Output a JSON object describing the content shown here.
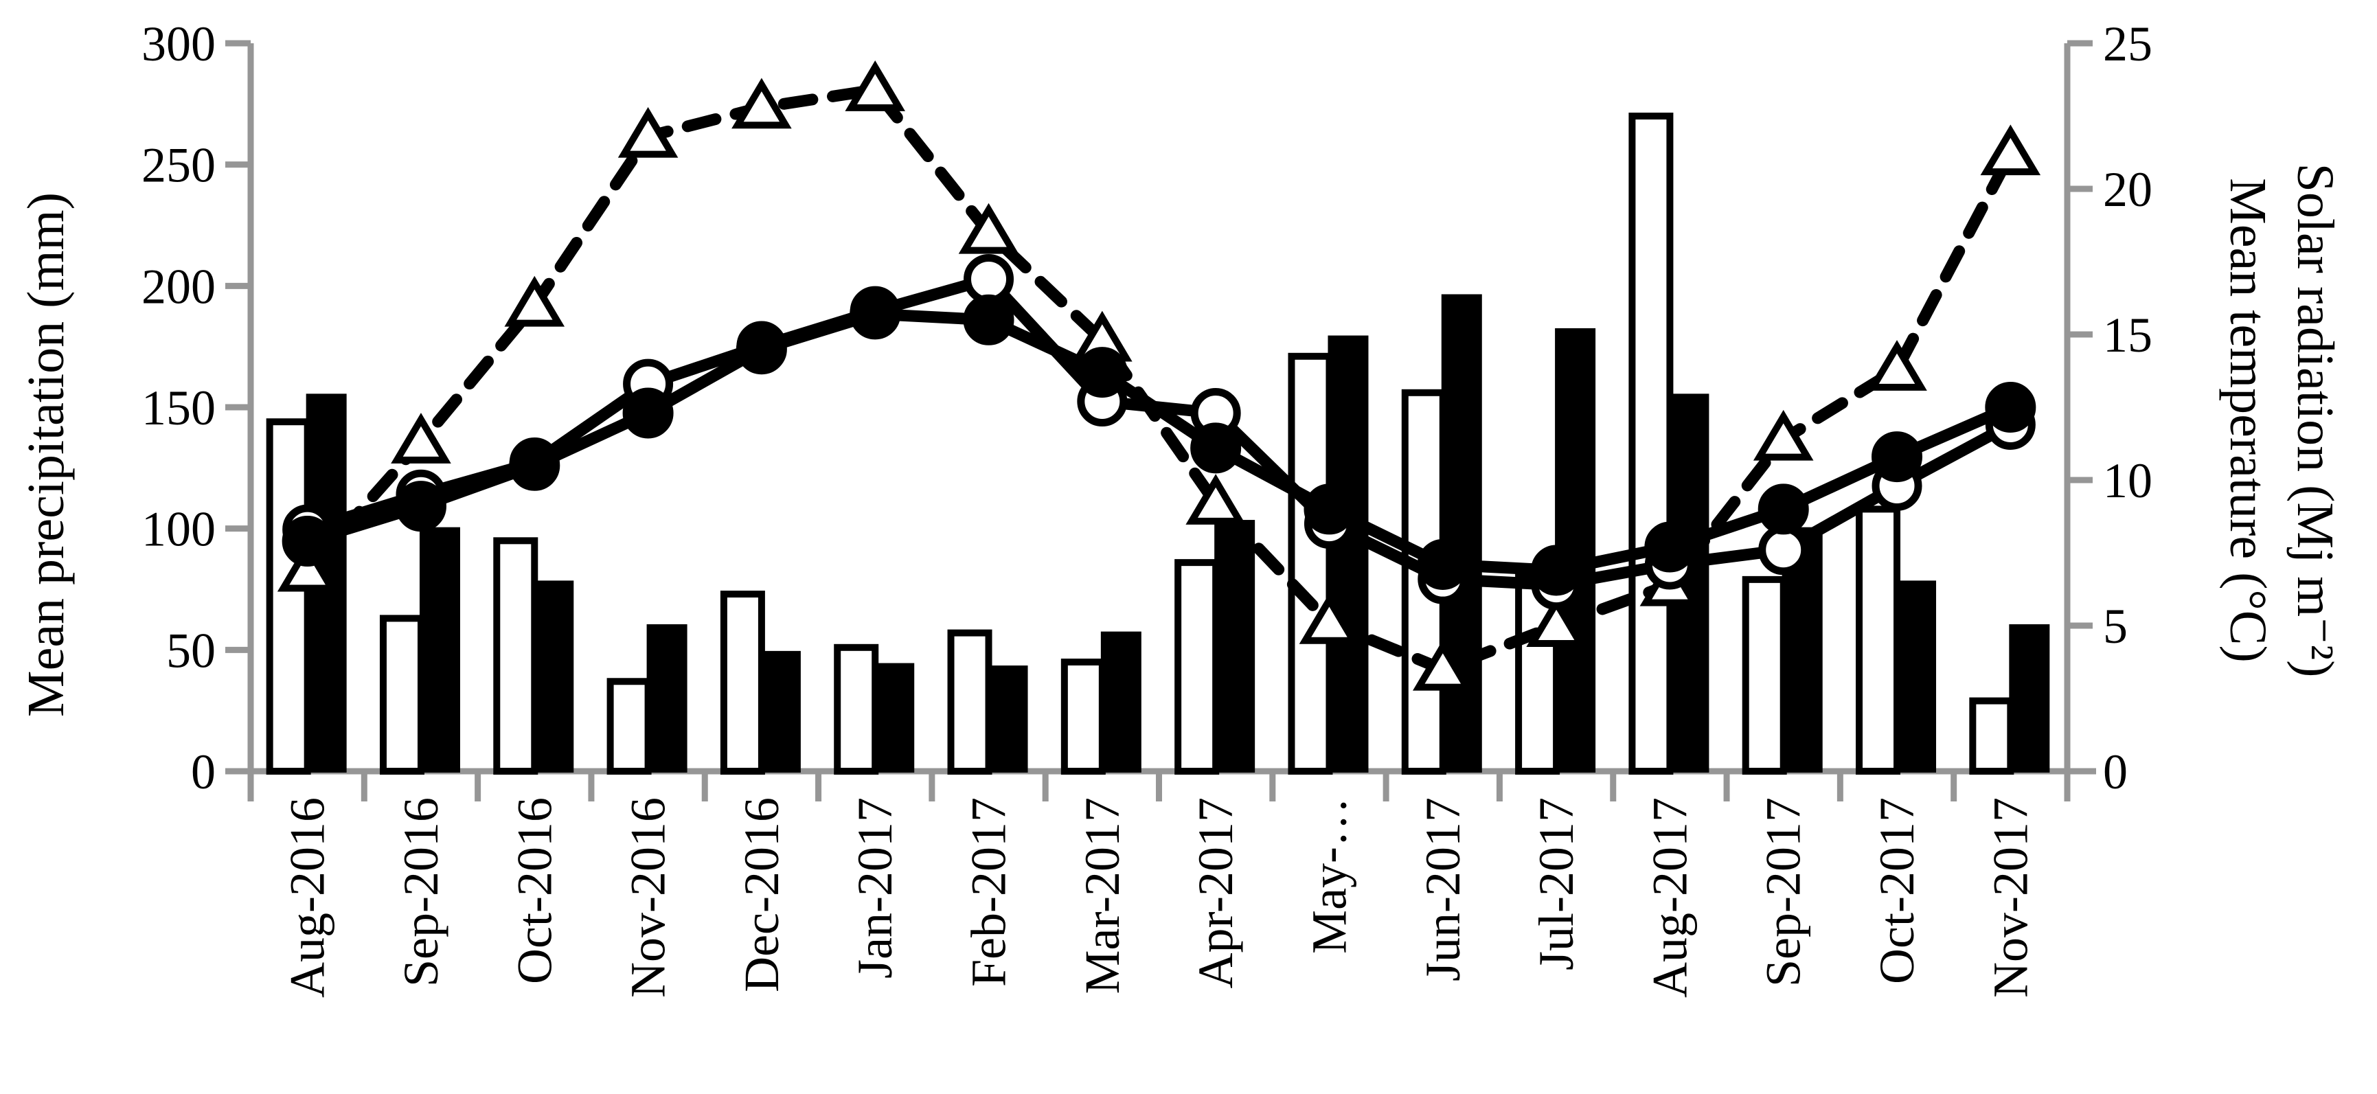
{
  "figure": {
    "background": "#ffffff",
    "axis_color": "#969696",
    "ink_color": "#000000"
  },
  "chart_data": {
    "type": "combo-bar-line",
    "title": "",
    "legend_position": "none",
    "grid": "off",
    "categories": [
      "Aug-2016",
      "Sep-2016",
      "Oct-2016",
      "Nov-2016",
      "Dec-2016",
      "Jan-2017",
      "Feb-2017",
      "Mar-2017",
      "Apr-2017",
      "May-…",
      "Jun-2017",
      "Jul-2017",
      "Aug-2017",
      "Sep-2017",
      "Oct-2017",
      "Nov-2017"
    ],
    "left_axis": {
      "title": "Mean precipitation (mm)",
      "min": 0,
      "max": 300,
      "tick_step": 50,
      "tick_labels": [
        "0",
        "50",
        "100",
        "150",
        "200",
        "250",
        "300"
      ]
    },
    "right_axis": {
      "title_lines": [
        "Solar radiation (Mj m⁻²)",
        "Mean temperature (°C)"
      ],
      "min": 0,
      "max": 25,
      "tick_step": 5,
      "tick_labels": [
        "0",
        "5",
        "10",
        "15",
        "20",
        "25"
      ]
    },
    "bar_series": [
      {
        "name": "precipitation-open-bars",
        "fill": "white",
        "axis": "left",
        "values": [
          144,
          63,
          95,
          37,
          73,
          51,
          57,
          45,
          86,
          171,
          156,
          80,
          270,
          79,
          108,
          29
        ]
      },
      {
        "name": "precipitation-filled-bars",
        "fill": "black",
        "axis": "left",
        "values": [
          155,
          100,
          78,
          60,
          49,
          44,
          43,
          57,
          103,
          179,
          196,
          182,
          155,
          100,
          78,
          60
        ]
      }
    ],
    "line_series": [
      {
        "name": "solar-radiation-open-triangles-dashed",
        "axis": "right",
        "marker": "open-triangle",
        "line": "dashed",
        "values": [
          6.9,
          11.3,
          16.0,
          21.8,
          22.8,
          23.4,
          18.5,
          14.8,
          9.2,
          5.1,
          3.5,
          5.0,
          6.4,
          11.4,
          13.8,
          21.2
        ]
      },
      {
        "name": "mean-temperature-open-circles-solid",
        "axis": "right",
        "marker": "open-circle",
        "line": "solid",
        "values": [
          8.3,
          9.5,
          10.6,
          13.3,
          14.6,
          15.8,
          16.9,
          12.7,
          12.3,
          8.5,
          6.6,
          6.4,
          7.1,
          7.6,
          9.8,
          11.9
        ]
      },
      {
        "name": "mean-temperature-filled-circles-solid",
        "axis": "right",
        "marker": "filled-circle",
        "line": "solid",
        "values": [
          7.9,
          9.1,
          10.5,
          12.3,
          14.5,
          15.7,
          15.5,
          13.7,
          11.1,
          9.0,
          7.1,
          6.9,
          7.7,
          9.0,
          10.8,
          12.5
        ]
      }
    ]
  }
}
